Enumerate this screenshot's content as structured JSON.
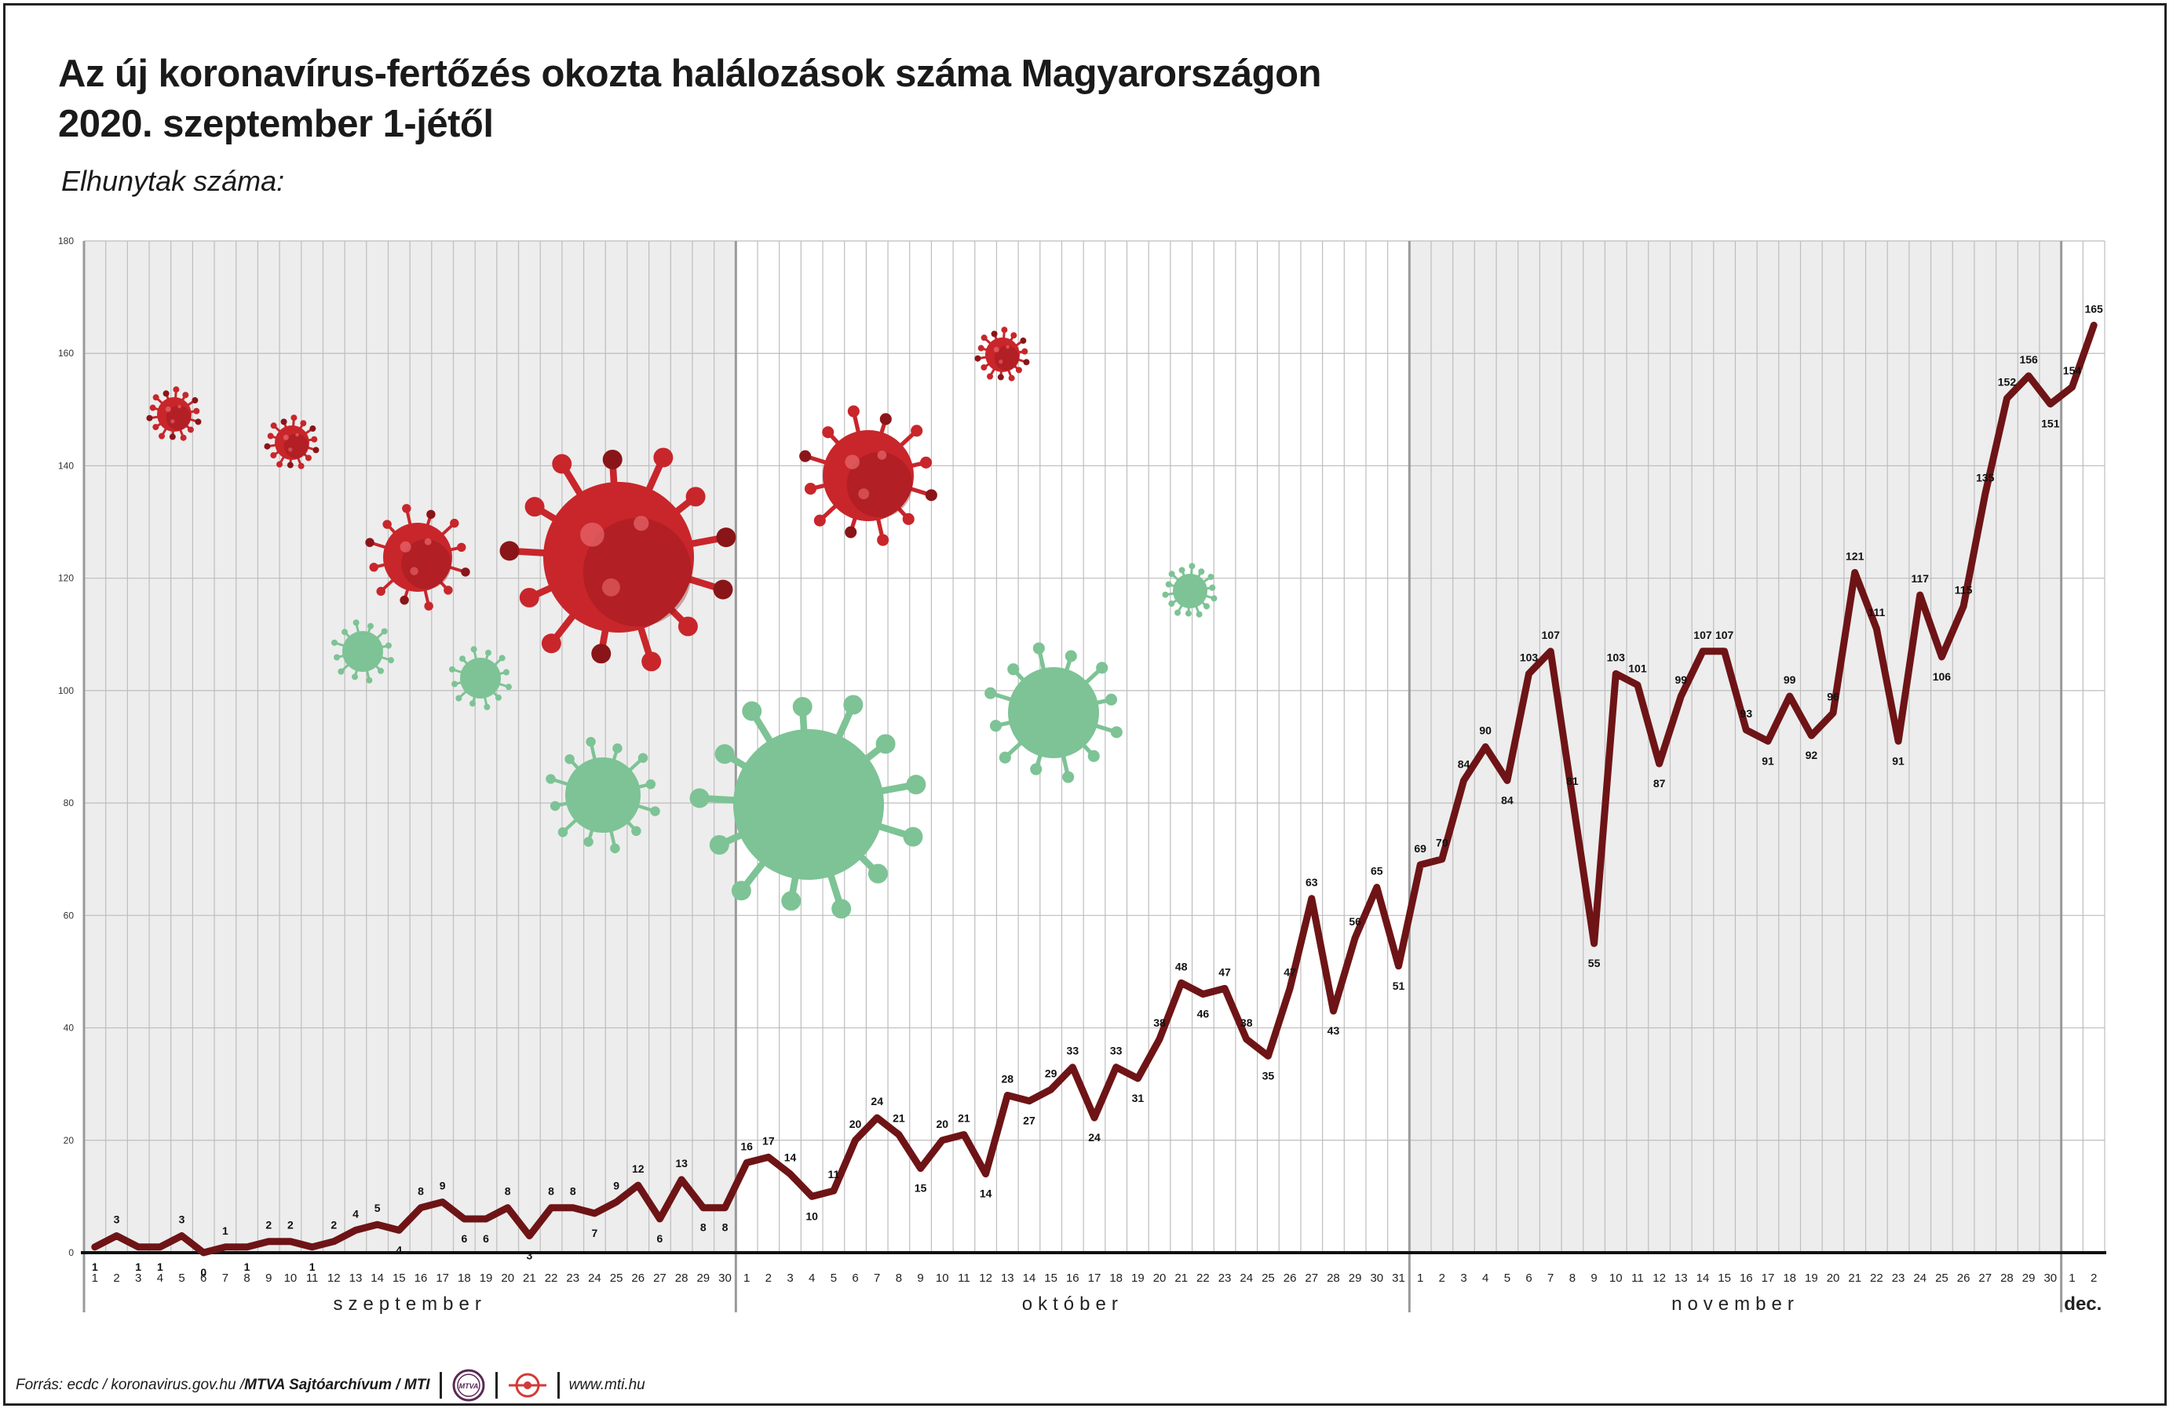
{
  "header": {
    "title_line1": "Az új koronavírus-fertőzés okozta halálozások száma Magyarországon",
    "title_line2": "2020. szeptember 1-jétől",
    "subtitle": "Elhunytak száma:"
  },
  "footer": {
    "source": "Forrás: ecdc / koronavirus.gov.hu / ",
    "archive": "MTVA Sajtóarchívum / MTI",
    "logo1_text": "MTVA",
    "website": "www.mti.hu"
  },
  "colors": {
    "line": "#6e1416",
    "grid": "#bdbdbd",
    "month_divider": "#9a9a9a",
    "band_shade": "#ededed",
    "virus_red": "#c8262b",
    "virus_red_dark": "#8a1518",
    "virus_green": "#7dc395"
  },
  "chart_data": {
    "type": "line",
    "title": "Az új koronavírus-fertőzés okozta halálozások száma Magyarországon 2020. szeptember 1-jétől",
    "ylabel": "Elhunytak száma:",
    "ylim": [
      0,
      180
    ],
    "yticks": [
      0,
      20,
      40,
      60,
      80,
      100,
      120,
      140,
      160,
      180
    ],
    "grid": true,
    "months": [
      {
        "label": "szeptember",
        "days": 30
      },
      {
        "label": "október",
        "days": 31
      },
      {
        "label": "november",
        "days": 30
      },
      {
        "label": "dec.",
        "days": 2
      }
    ],
    "values": [
      1,
      3,
      1,
      1,
      3,
      0,
      1,
      1,
      2,
      2,
      1,
      2,
      4,
      5,
      4,
      8,
      9,
      6,
      6,
      8,
      3,
      8,
      8,
      7,
      9,
      12,
      6,
      13,
      8,
      8,
      16,
      17,
      14,
      10,
      11,
      20,
      24,
      21,
      15,
      20,
      21,
      14,
      28,
      27,
      29,
      33,
      24,
      33,
      31,
      38,
      48,
      46,
      47,
      38,
      35,
      47,
      63,
      43,
      56,
      65,
      51,
      69,
      70,
      84,
      90,
      84,
      103,
      107,
      81,
      55,
      103,
      101,
      87,
      99,
      107,
      107,
      93,
      91,
      99,
      92,
      96,
      121,
      111,
      91,
      117,
      106,
      115,
      135,
      152,
      156,
      151,
      154,
      165
    ]
  }
}
